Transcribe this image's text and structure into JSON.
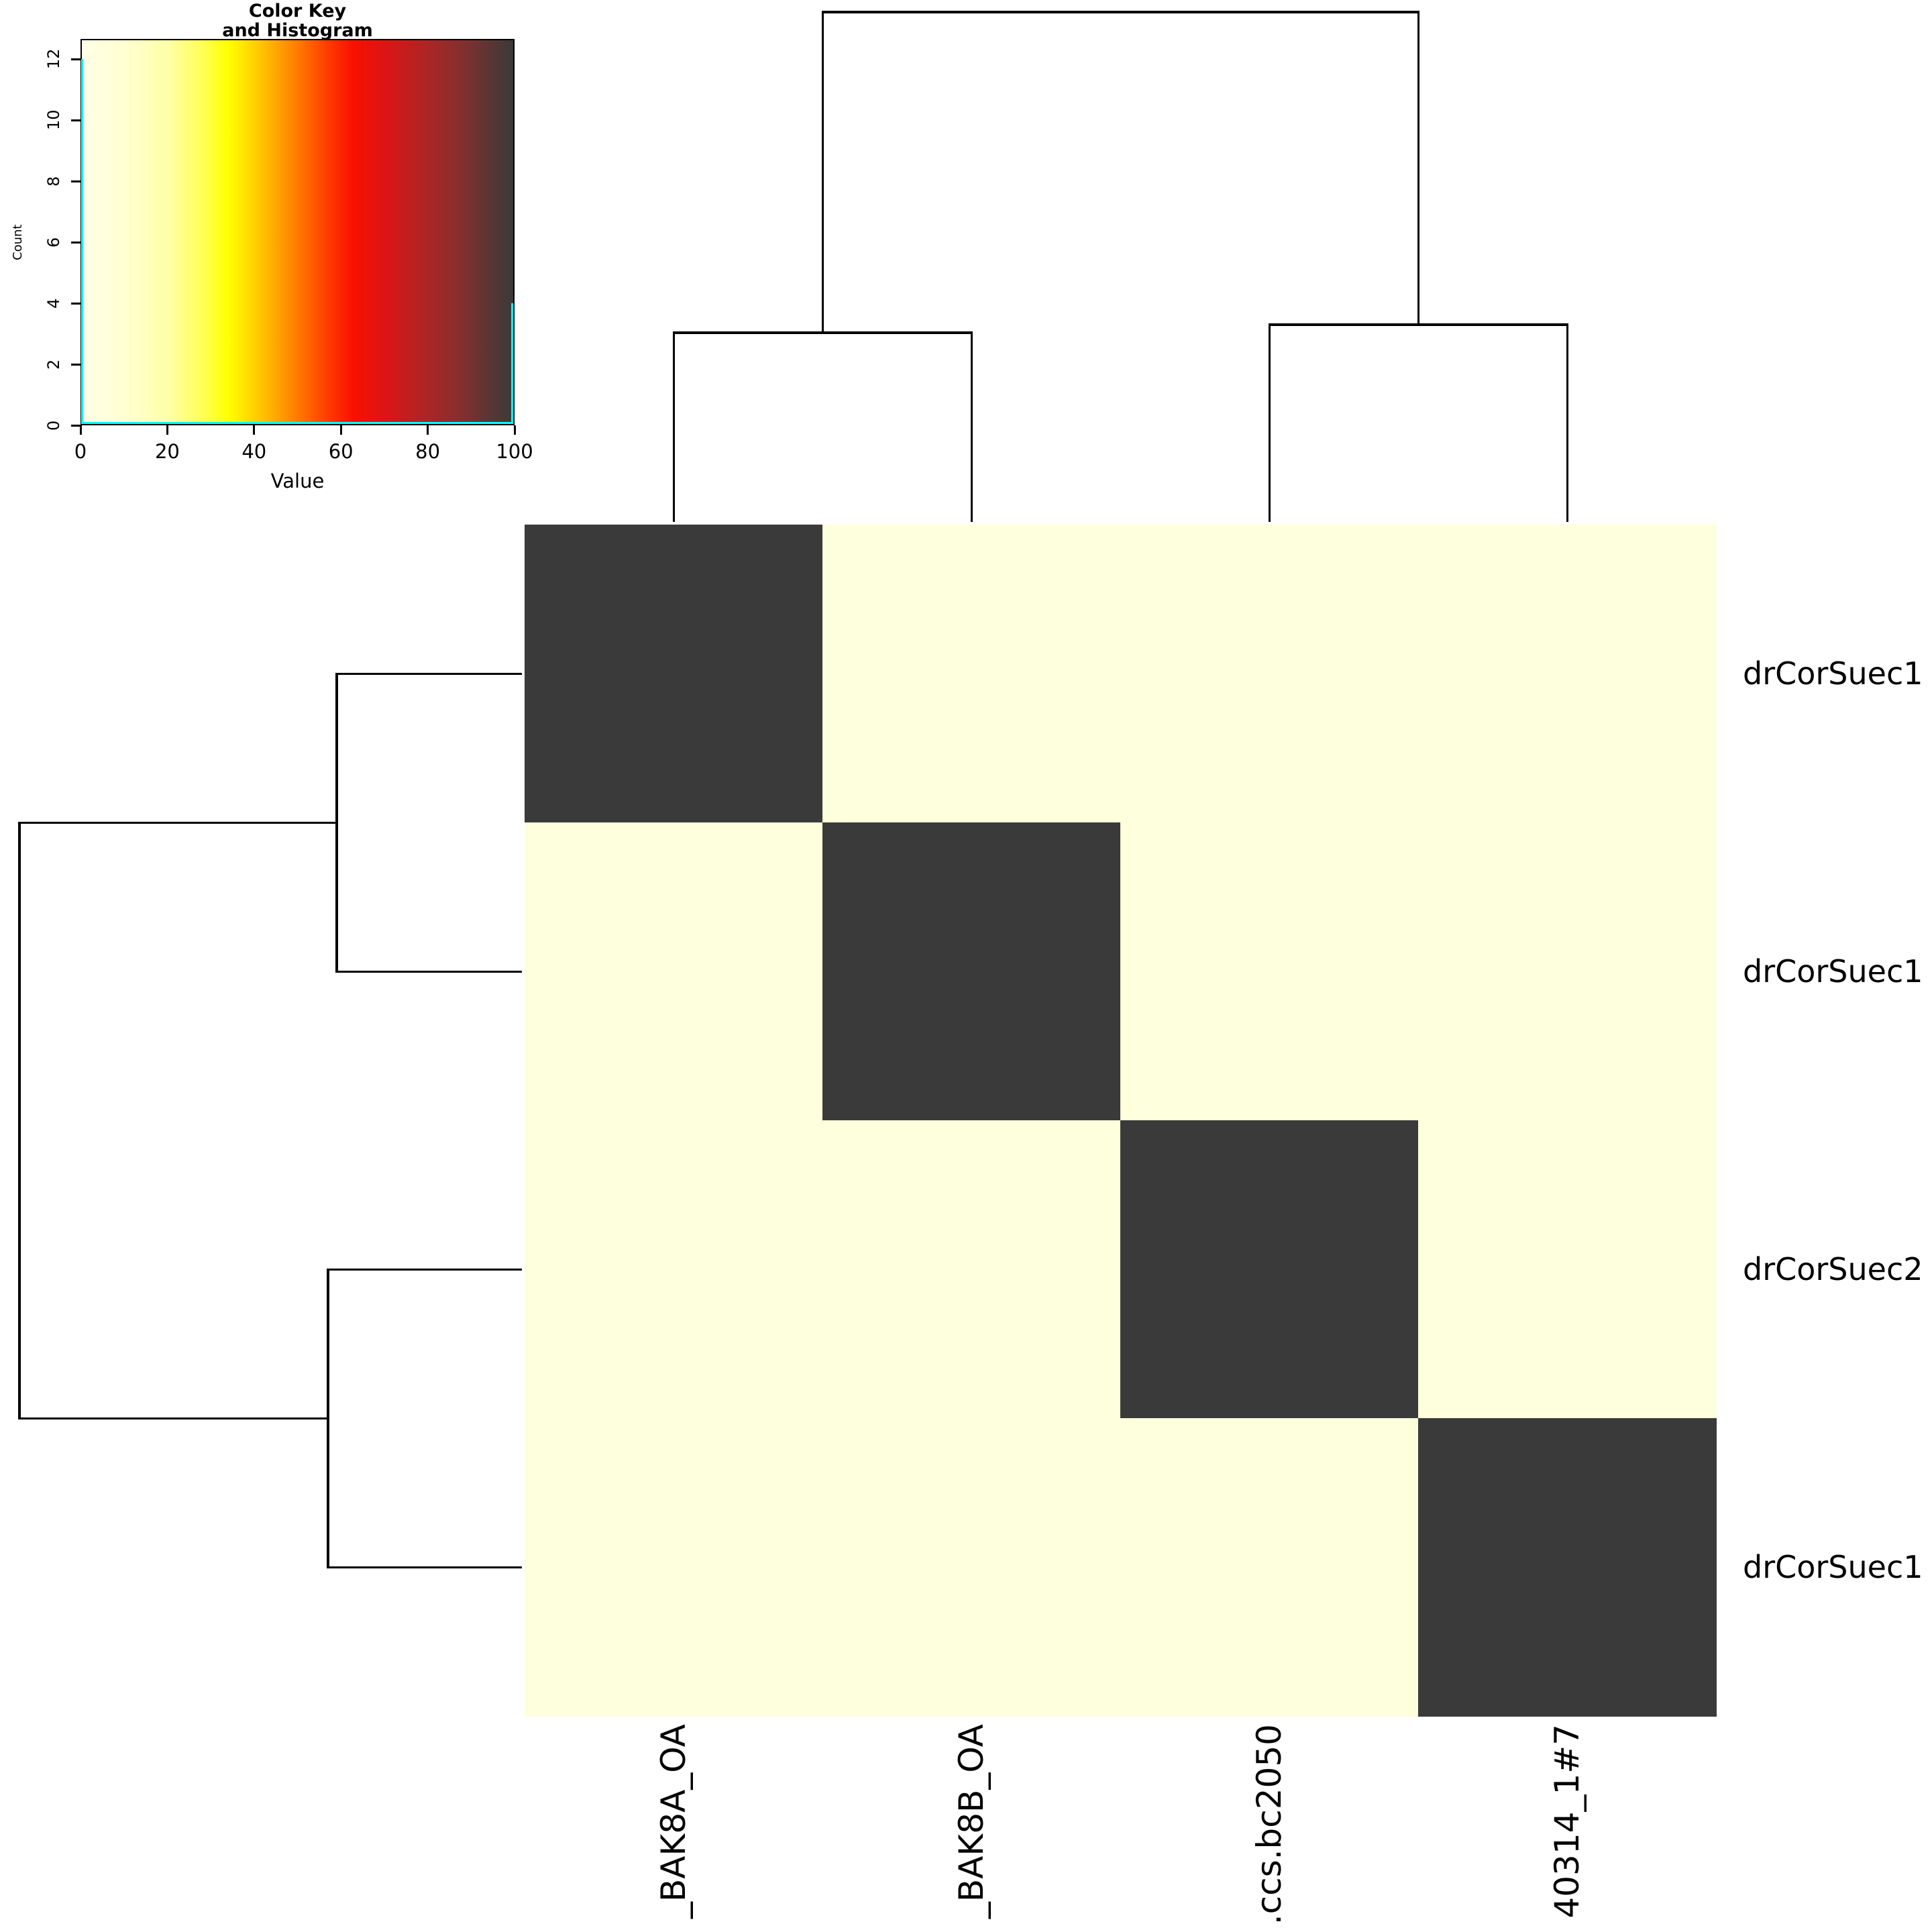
{
  "color_key": {
    "title_line1": "Color Key",
    "title_line2": "and Histogram",
    "xlabel": "Value",
    "ylabel": "Count",
    "x_ticks": [
      0,
      20,
      40,
      60,
      80,
      100
    ],
    "y_ticks": [
      0,
      2,
      4,
      6,
      8,
      10,
      12
    ],
    "trace_color": "#00ffff",
    "gradient_stops": [
      {
        "at": 0.0,
        "color": "#ffffe8"
      },
      {
        "at": 0.1,
        "color": "#ffffd2"
      },
      {
        "at": 0.2,
        "color": "#ffffa8"
      },
      {
        "at": 0.28,
        "color": "#ffff55"
      },
      {
        "at": 0.34,
        "color": "#ffff00"
      },
      {
        "at": 0.42,
        "color": "#ffc100"
      },
      {
        "at": 0.5,
        "color": "#ff7b00"
      },
      {
        "at": 0.57,
        "color": "#ff3c00"
      },
      {
        "at": 0.63,
        "color": "#f91000"
      },
      {
        "at": 0.7,
        "color": "#dd1414"
      },
      {
        "at": 0.8,
        "color": "#ab2626"
      },
      {
        "at": 0.88,
        "color": "#842f2e"
      },
      {
        "at": 0.95,
        "color": "#573634"
      },
      {
        "at": 1.0,
        "color": "#3a3a3a"
      }
    ]
  },
  "heatmap": {
    "row_labels": [
      "drCorSuec1",
      "drCorSuec1",
      "drCorSuec2",
      "drCorSuec1"
    ],
    "col_labels": [
      "_BAK8A_OA",
      "_BAK8B_OA",
      ".ccs.bc2050",
      "40314_1#7"
    ],
    "low_color": "#fdffdd",
    "high_color": "#3a3a3a"
  },
  "chart_data": {
    "type": "heatmap",
    "title": "Color Key and Histogram",
    "columns": [
      "_BAK8A_OA",
      "_BAK8B_OA",
      ".ccs.bc2050",
      "40314_1#7"
    ],
    "rows": [
      "drCorSuec1",
      "drCorSuec1",
      "drCorSuec2",
      "drCorSuec1"
    ],
    "values": [
      [
        100,
        0,
        0,
        0
      ],
      [
        0,
        100,
        0,
        0
      ],
      [
        0,
        0,
        100,
        0
      ],
      [
        0,
        0,
        0,
        100
      ]
    ],
    "value_range": [
      0,
      100
    ],
    "legend": {
      "xlabel": "Value",
      "ylabel": "Count",
      "x_ticks": [
        0,
        20,
        40,
        60,
        80,
        100
      ],
      "y_ticks": [
        0,
        2,
        4,
        6,
        8,
        10,
        12
      ],
      "histogram_points": [
        {
          "value": 0,
          "count": 12
        },
        {
          "value": 100,
          "count": 4
        }
      ]
    },
    "column_dendrogram": {
      "root_y": 18,
      "leaf_tip_y": 778,
      "pair_joins": [
        {
          "leaves": [
            0,
            1
          ],
          "y": 496
        },
        {
          "leaves": [
            2,
            3
          ],
          "y": 484
        }
      ]
    },
    "row_dendrogram": {
      "root_x": 29,
      "leaf_tip_x": 778,
      "pair_joins": [
        {
          "leaves": [
            0,
            1
          ],
          "x": 502
        },
        {
          "leaves": [
            2,
            3
          ],
          "x": 489
        }
      ]
    },
    "layout_hints": {
      "heatmap_rect": [
        782,
        782,
        1776,
        1776
      ],
      "key_rect": [
        120,
        58,
        647,
        576
      ],
      "key_count_max": 12.66,
      "legend_position": "top-left",
      "grid": false
    }
  }
}
